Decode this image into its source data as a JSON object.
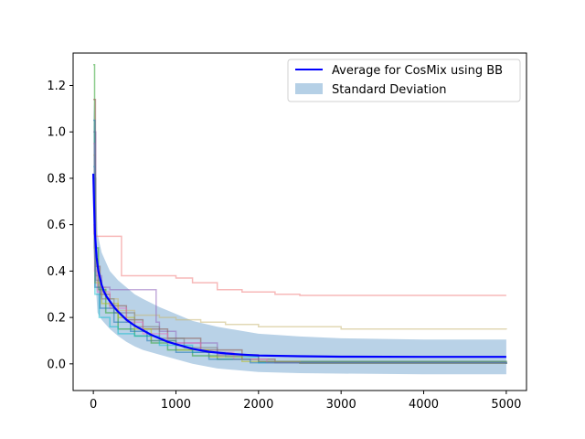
{
  "chart_data": {
    "type": "line",
    "xlim": [
      -245,
      5245
    ],
    "ylim": [
      -0.115,
      1.34
    ],
    "x_ticks": [
      0,
      1000,
      2000,
      3000,
      4000,
      5000
    ],
    "x_tick_labels": [
      "0",
      "1000",
      "2000",
      "3000",
      "4000",
      "5000"
    ],
    "y_ticks": [
      0.0,
      0.2,
      0.4,
      0.6,
      0.8,
      1.0,
      1.2
    ],
    "y_tick_labels": [
      "0.0",
      "0.2",
      "0.4",
      "0.6",
      "0.8",
      "1.0",
      "1.2"
    ],
    "grid": false,
    "legend_position": "upper-right",
    "legend": {
      "average_label": "Average for CosMix using BB",
      "std_label": "Standard Deviation"
    },
    "colors": {
      "average": "#0000ff",
      "std_fill": "#b5d0e6",
      "runs": [
        "#f08080",
        "#c8b877",
        "#9467bd",
        "#2ca02c",
        "#17becf",
        "#8c564b",
        "#bcbd22",
        "#e377c2",
        "#7f7f7f",
        "#1f77b4"
      ]
    },
    "average": {
      "x": [
        0,
        10,
        20,
        40,
        60,
        80,
        100,
        130,
        160,
        200,
        250,
        300,
        400,
        500,
        600,
        700,
        800,
        900,
        1000,
        1200,
        1400,
        1600,
        1800,
        2000,
        2500,
        3000,
        4000,
        5000
      ],
      "y": [
        0.82,
        0.68,
        0.56,
        0.46,
        0.4,
        0.37,
        0.34,
        0.31,
        0.29,
        0.27,
        0.245,
        0.225,
        0.19,
        0.165,
        0.145,
        0.125,
        0.11,
        0.095,
        0.085,
        0.065,
        0.052,
        0.045,
        0.04,
        0.036,
        0.033,
        0.031,
        0.03,
        0.03
      ]
    },
    "std_band": {
      "x": [
        0,
        50,
        100,
        200,
        300,
        400,
        500,
        600,
        800,
        1000,
        1200,
        1500,
        2000,
        2500,
        3000,
        4000,
        5000
      ],
      "upper": [
        1.13,
        0.56,
        0.48,
        0.4,
        0.36,
        0.33,
        0.3,
        0.28,
        0.245,
        0.215,
        0.185,
        0.16,
        0.13,
        0.118,
        0.11,
        0.105,
        0.105
      ],
      "lower": [
        0.5,
        0.22,
        0.19,
        0.15,
        0.12,
        0.095,
        0.075,
        0.06,
        0.04,
        0.02,
        0.0,
        -0.02,
        -0.035,
        -0.04,
        -0.042,
        -0.045,
        -0.045
      ]
    },
    "runs": [
      {
        "x": [
          0,
          10,
          30,
          330,
          340,
          1000,
          1200,
          1500,
          1800,
          2200,
          2500,
          5000
        ],
        "y": [
          0.6,
          0.56,
          0.55,
          0.55,
          0.38,
          0.37,
          0.35,
          0.32,
          0.31,
          0.3,
          0.295,
          0.295
        ]
      },
      {
        "x": [
          0,
          20,
          50,
          150,
          300,
          500,
          800,
          1000,
          1300,
          1600,
          2000,
          3000,
          5000
        ],
        "y": [
          0.9,
          0.45,
          0.33,
          0.28,
          0.23,
          0.21,
          0.2,
          0.19,
          0.18,
          0.17,
          0.16,
          0.15,
          0.148
        ]
      },
      {
        "x": [
          0,
          30,
          100,
          200,
          700,
          760,
          800,
          1000,
          1500,
          2000,
          5000
        ],
        "y": [
          1.0,
          0.38,
          0.33,
          0.32,
          0.32,
          0.18,
          0.14,
          0.09,
          0.04,
          0.01,
          0.0
        ]
      },
      {
        "x": [
          0,
          15,
          60,
          150,
          300,
          500,
          700,
          900,
          1200,
          1500,
          2000,
          5000
        ],
        "y": [
          1.29,
          0.5,
          0.32,
          0.22,
          0.15,
          0.12,
          0.09,
          0.06,
          0.035,
          0.02,
          0.01,
          0.0
        ]
      },
      {
        "x": [
          0,
          20,
          70,
          200,
          300,
          500,
          800,
          1200,
          1600,
          2000,
          5000
        ],
        "y": [
          0.85,
          0.3,
          0.2,
          0.16,
          0.13,
          0.12,
          0.08,
          0.05,
          0.03,
          0.005,
          0.0
        ]
      },
      {
        "x": [
          0,
          25,
          80,
          200,
          400,
          600,
          900,
          1300,
          1800,
          2200,
          5000
        ],
        "y": [
          1.14,
          0.42,
          0.3,
          0.25,
          0.19,
          0.15,
          0.11,
          0.06,
          0.02,
          0.005,
          0.0
        ]
      },
      {
        "x": [
          0,
          20,
          100,
          300,
          500,
          700,
          1000,
          1400,
          1800,
          2500,
          5000
        ],
        "y": [
          0.7,
          0.35,
          0.26,
          0.2,
          0.15,
          0.1,
          0.06,
          0.03,
          0.01,
          0.003,
          0.0
        ]
      },
      {
        "x": [
          0,
          15,
          50,
          200,
          400,
          600,
          900,
          1300,
          1700,
          2100,
          5000
        ],
        "y": [
          0.95,
          0.4,
          0.31,
          0.24,
          0.18,
          0.13,
          0.09,
          0.05,
          0.02,
          0.005,
          0.0
        ]
      },
      {
        "x": [
          0,
          30,
          100,
          250,
          500,
          800,
          1100,
          1500,
          2000,
          2500,
          5000
        ],
        "y": [
          0.8,
          0.36,
          0.28,
          0.22,
          0.16,
          0.11,
          0.07,
          0.035,
          0.01,
          0.002,
          0.0
        ]
      },
      {
        "x": [
          0,
          20,
          80,
          250,
          450,
          650,
          1000,
          1400,
          1900,
          5000
        ],
        "y": [
          1.05,
          0.33,
          0.24,
          0.18,
          0.14,
          0.1,
          0.05,
          0.02,
          0.005,
          0.0
        ]
      }
    ]
  }
}
